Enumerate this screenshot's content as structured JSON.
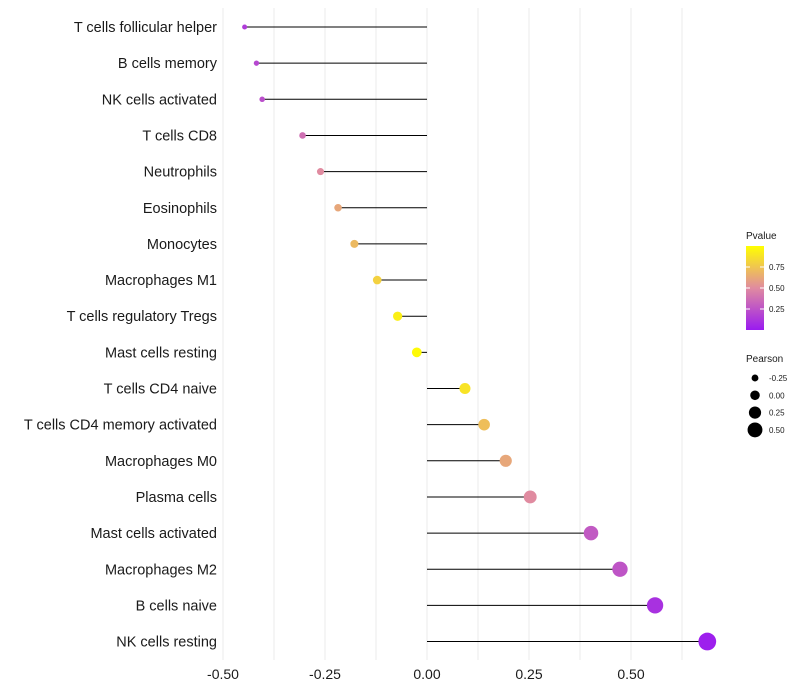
{
  "chart_data": {
    "type": "lollipop",
    "title": "",
    "xlabel": "",
    "ylabel": "",
    "xlim": [
      -0.5,
      0.68
    ],
    "xticks": [
      -0.5,
      -0.25,
      0.0,
      0.25,
      0.5
    ],
    "xtick_labels": [
      "-0.50",
      "-0.25",
      "0.00",
      "0.25",
      "0.50"
    ],
    "categories": [
      "T cells follicular helper",
      "B cells memory",
      "NK cells activated",
      "T cells CD8",
      "Neutrophils",
      "Eosinophils",
      "Monocytes",
      "Macrophages M1",
      "T cells regulatory  Tregs",
      "Mast cells resting",
      "T cells CD4 naive",
      "T cells CD4 memory activated",
      "Macrophages M0",
      "Plasma cells",
      "Mast cells activated",
      "Macrophages M2",
      "B cells naive",
      "NK cells resting"
    ],
    "pearson": [
      -0.447,
      -0.418,
      -0.404,
      -0.305,
      -0.261,
      -0.218,
      -0.178,
      -0.122,
      -0.072,
      -0.025,
      0.093,
      0.14,
      0.193,
      0.253,
      0.402,
      0.473,
      0.559,
      0.687
    ],
    "pvalue": [
      0.15,
      0.2,
      0.23,
      0.38,
      0.5,
      0.62,
      0.7,
      0.8,
      0.93,
      0.98,
      0.88,
      0.72,
      0.62,
      0.5,
      0.28,
      0.26,
      0.1,
      0.02
    ],
    "color_legend": {
      "title": "Pvalue",
      "ticks": [
        0.25,
        0.5,
        0.75
      ],
      "tick_labels": [
        "0.25",
        "0.50",
        "0.75"
      ],
      "range": [
        0.0,
        1.0
      ],
      "low_color": "#9a1bf0",
      "mid_color": "#e08ba0",
      "high_color": "#ffff00"
    },
    "size_legend": {
      "title": "Pearson",
      "values": [
        -0.25,
        0.0,
        0.25,
        0.5
      ],
      "labels": [
        "-0.25",
        "0.00",
        "0.25",
        "0.50"
      ]
    },
    "grid": true,
    "legend_position": "right"
  }
}
